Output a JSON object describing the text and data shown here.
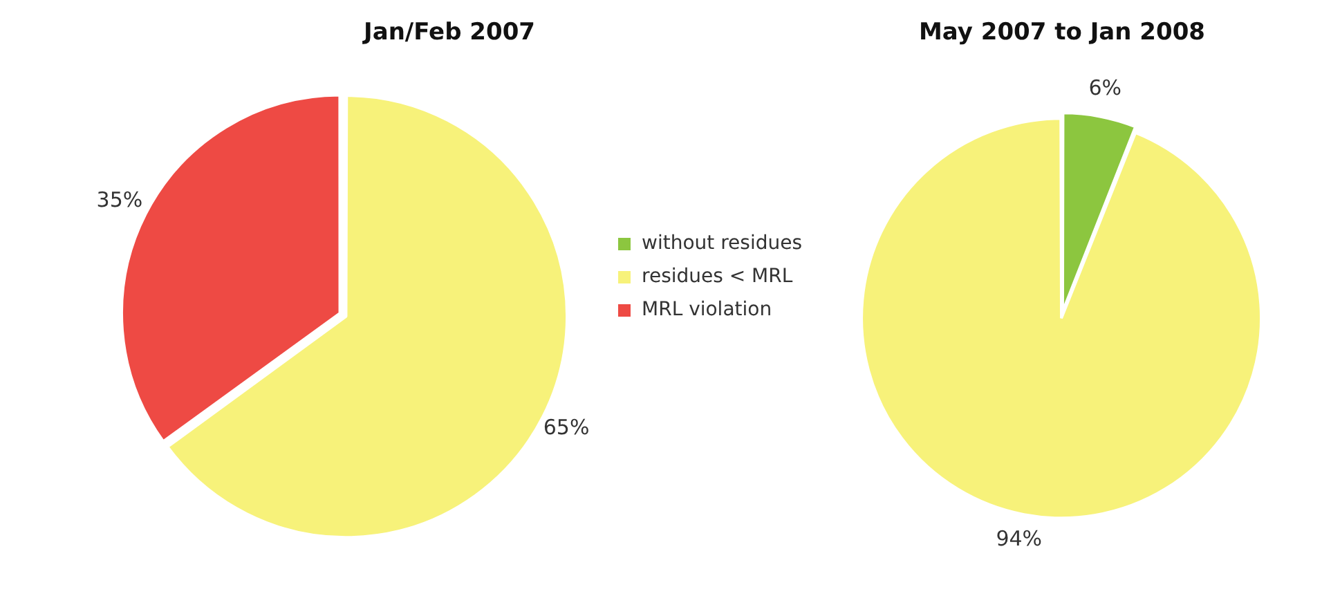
{
  "chart_data": [
    {
      "type": "pie",
      "title": "Jan/Feb 2007",
      "categories": [
        "without residues",
        "residues < MRL",
        "MRL violation"
      ],
      "values": [
        0,
        65,
        35
      ],
      "colors": [
        "#8cc63f",
        "#f7f27a",
        "#ee4a44"
      ],
      "value_labels": [
        null,
        "65%",
        "35%"
      ],
      "legend": "right"
    },
    {
      "type": "pie",
      "title": "May 2007 to Jan 2008",
      "categories": [
        null,
        null
      ],
      "values": [
        6,
        94
      ],
      "colors": [
        "#8cc63f",
        "#f7f27a"
      ],
      "value_labels": [
        "6%",
        "94%"
      ]
    }
  ]
}
